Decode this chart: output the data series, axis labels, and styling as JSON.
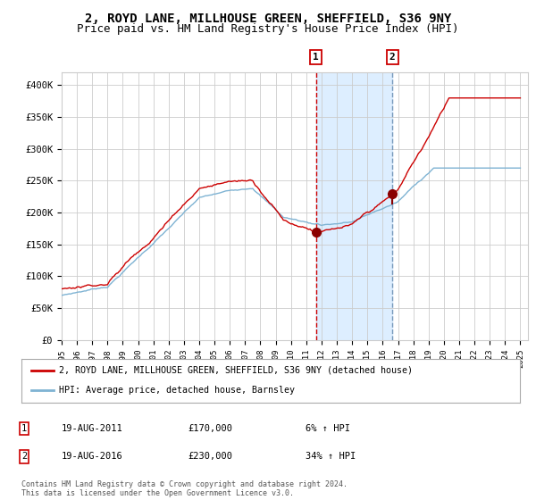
{
  "title": "2, ROYD LANE, MILLHOUSE GREEN, SHEFFIELD, S36 9NY",
  "subtitle": "Price paid vs. HM Land Registry's House Price Index (HPI)",
  "legend_line1": "2, ROYD LANE, MILLHOUSE GREEN, SHEFFIELD, S36 9NY (detached house)",
  "legend_line2": "HPI: Average price, detached house, Barnsley",
  "annotation1_date": "19-AUG-2011",
  "annotation1_price": "£170,000",
  "annotation1_hpi": "6% ↑ HPI",
  "annotation2_date": "19-AUG-2016",
  "annotation2_price": "£230,000",
  "annotation2_hpi": "34% ↑ HPI",
  "footer": "Contains HM Land Registry data © Crown copyright and database right 2024.\nThis data is licensed under the Open Government Licence v3.0.",
  "hpi_color": "#7fb3d3",
  "price_color": "#cc0000",
  "marker_color": "#8b0000",
  "vline1_color": "#cc0000",
  "vline2_color": "#7799bb",
  "shade_color": "#ddeeff",
  "ylim": [
    0,
    420000
  ],
  "yticks": [
    0,
    50000,
    100000,
    150000,
    200000,
    250000,
    300000,
    350000,
    400000
  ],
  "ytick_labels": [
    "£0",
    "£50K",
    "£100K",
    "£150K",
    "£200K",
    "£250K",
    "£300K",
    "£350K",
    "£400K"
  ],
  "event1_year": 2011.63,
  "event2_year": 2016.63,
  "event1_price": 170000,
  "event2_price": 230000,
  "bg_color": "#ffffff",
  "grid_color": "#cccccc",
  "title_fontsize": 10,
  "subtitle_fontsize": 9
}
